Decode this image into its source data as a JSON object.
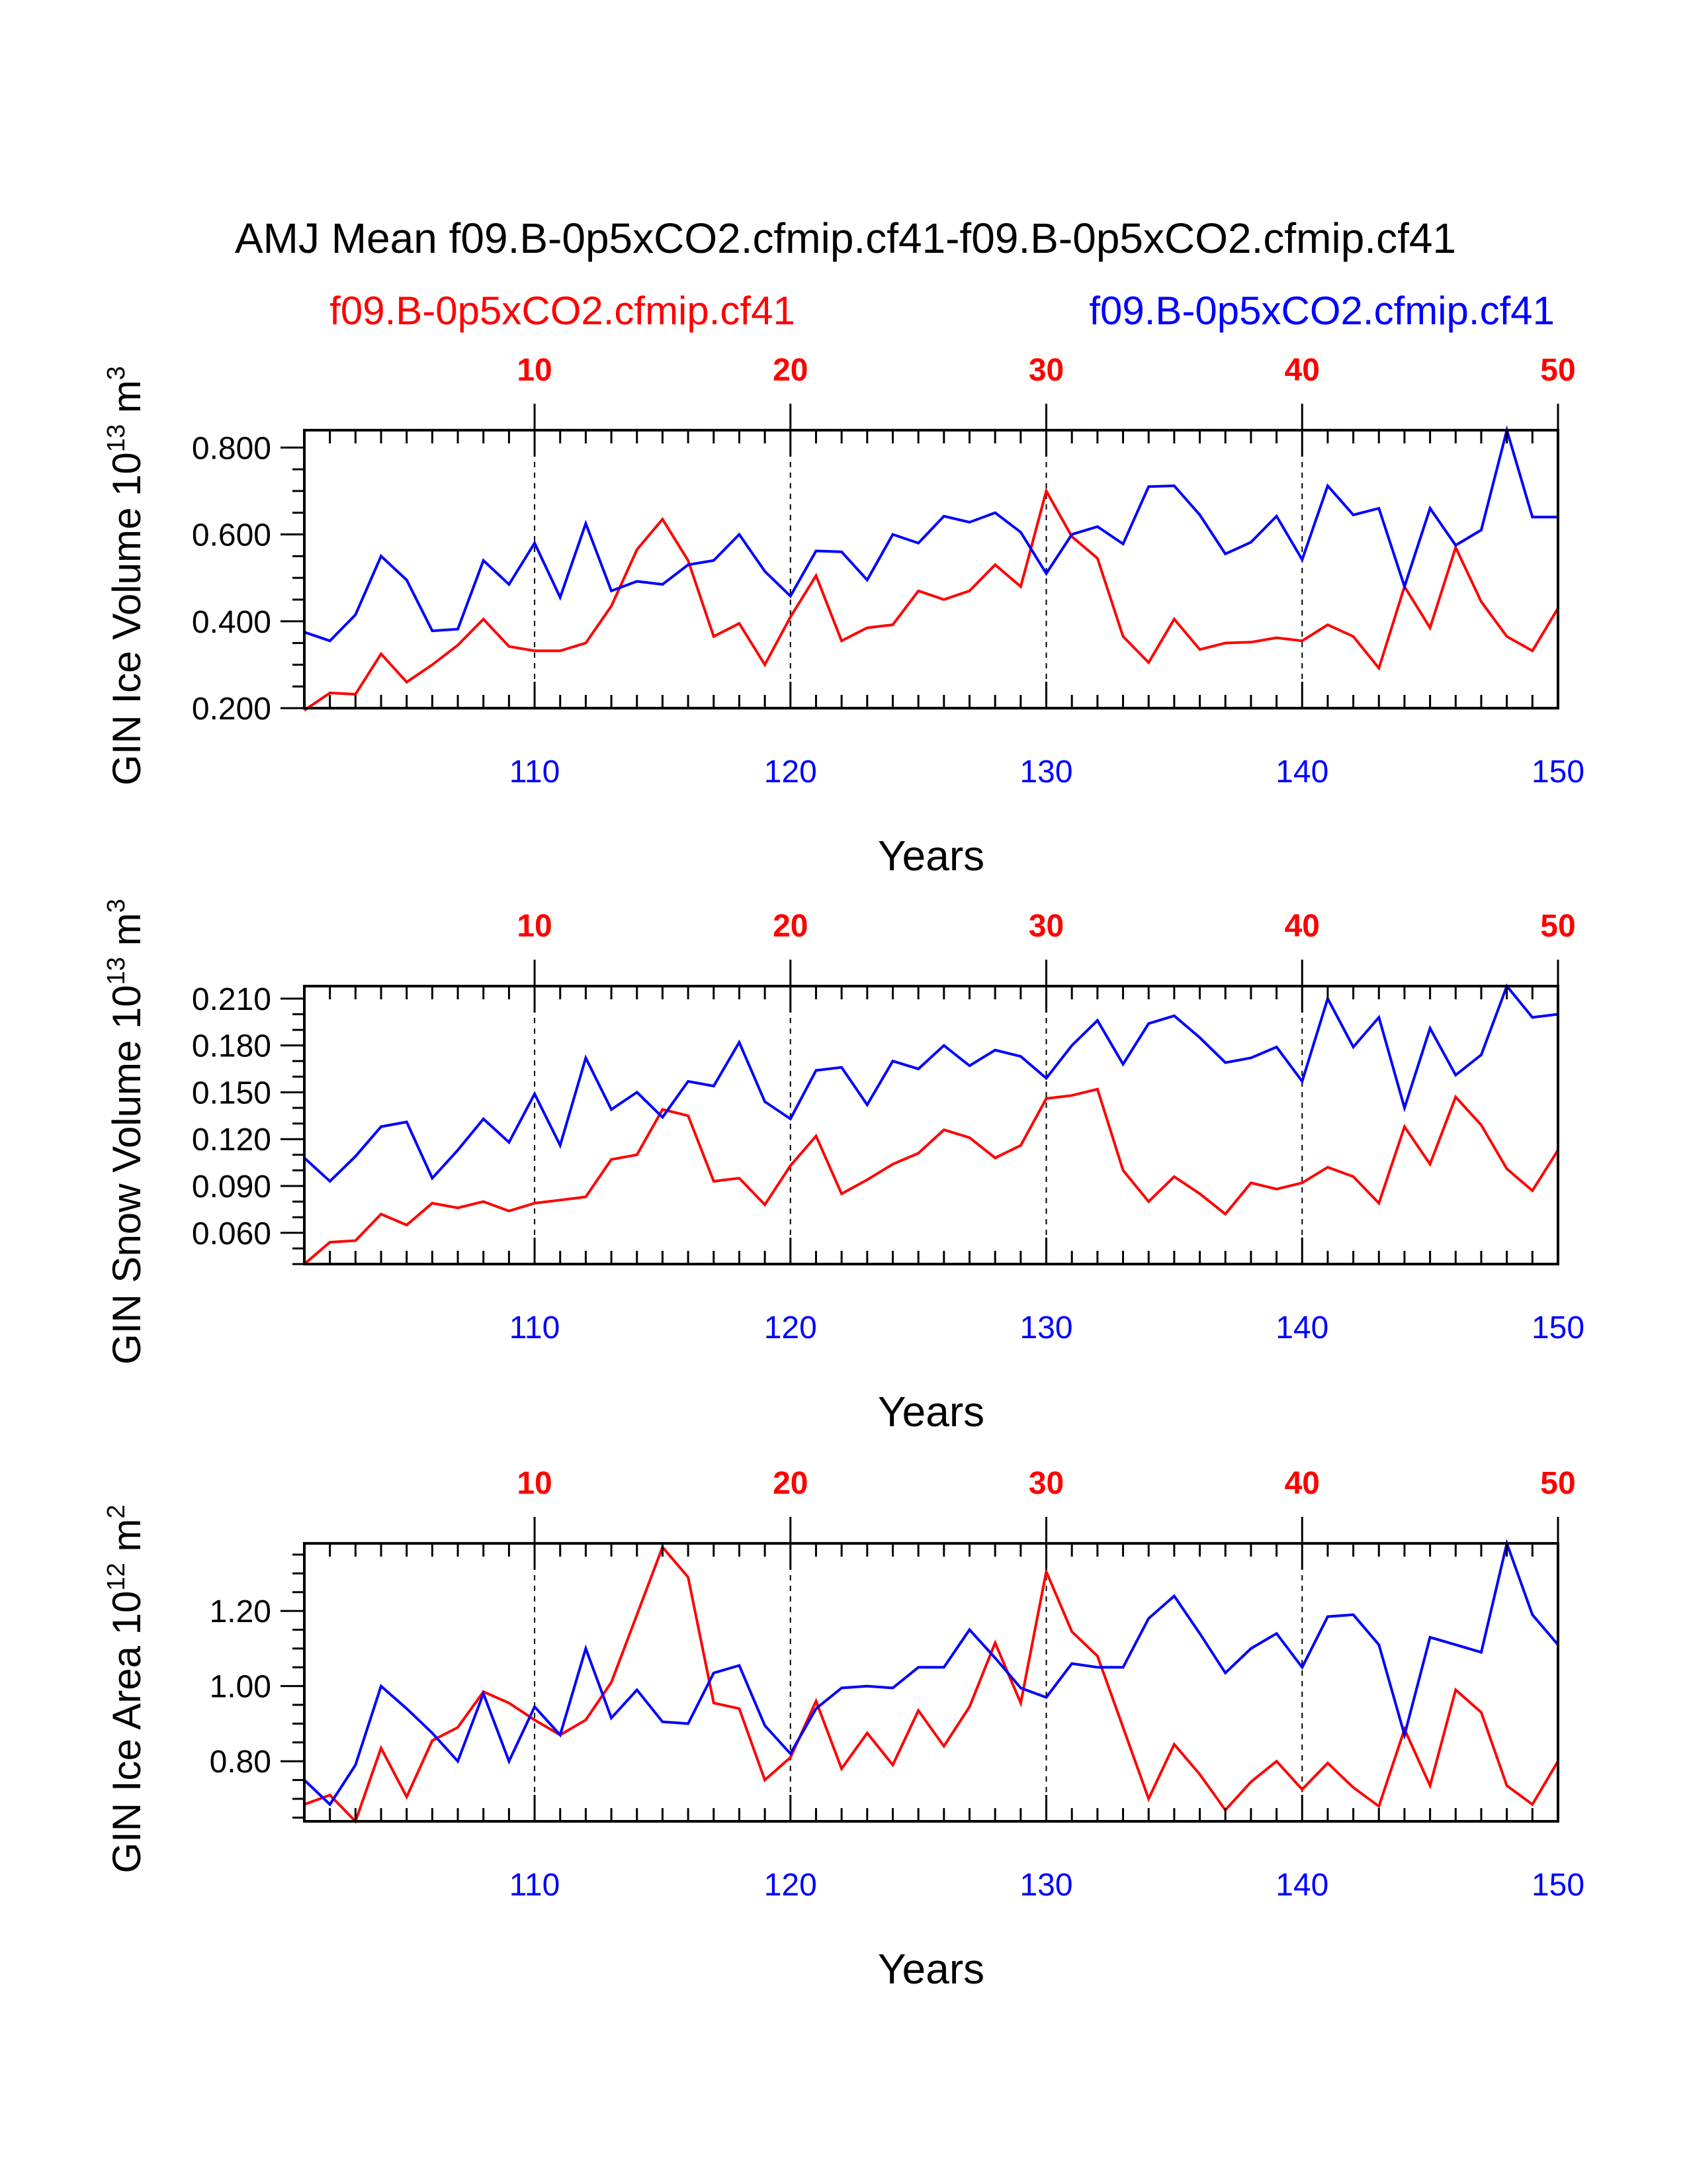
{
  "title": "AMJ Mean f09.B-0p5xCO2.cfmip.cf41-f09.B-0p5xCO2.cfmip.cf41",
  "legend": {
    "left": {
      "label": "f09.B-0p5xCO2.cfmip.cf41",
      "color": "#ff0000"
    },
    "right": {
      "label": "f09.B-0p5xCO2.cfmip.cf41",
      "color": "#0000ff"
    }
  },
  "colors": {
    "series_a": "#ff0000",
    "series_b": "#0000ff",
    "axis": "#000000"
  },
  "chart_data": [
    {
      "type": "line",
      "id": "ice-volume",
      "ylabel": "GIN Ice Volume 10",
      "ylabel_exp": "13",
      "ylabel_unit": " m",
      "ylabel_unit_exp": "3",
      "xlabel": "Years",
      "xlim": [
        101,
        150
      ],
      "ylim": [
        0.2,
        0.84
      ],
      "yticks": [
        0.2,
        0.4,
        0.6,
        0.8
      ],
      "ytick_labels": [
        "0.200",
        "0.400",
        "0.600",
        "0.800"
      ],
      "yminor": 0.05,
      "xticks_bottom": [
        110,
        120,
        130,
        140,
        150
      ],
      "xticks_bottom_labels": [
        "110",
        "120",
        "130",
        "140",
        "150"
      ],
      "xticks_top_labels": [
        "10",
        "20",
        "30",
        "40",
        "50"
      ],
      "x": [
        101,
        102,
        103,
        104,
        105,
        106,
        107,
        108,
        109,
        110,
        111,
        112,
        113,
        114,
        115,
        116,
        117,
        118,
        119,
        120,
        121,
        122,
        123,
        124,
        125,
        126,
        127,
        128,
        129,
        130,
        131,
        132,
        133,
        134,
        135,
        136,
        137,
        138,
        139,
        140,
        141,
        142,
        143,
        144,
        145,
        146,
        147,
        148,
        149,
        150
      ],
      "series": [
        {
          "name": "f09.B-0p5xCO2.cfmip.cf41",
          "color": "#ff0000",
          "values": [
            0.195,
            0.235,
            0.232,
            0.325,
            0.26,
            0.3,
            0.345,
            0.405,
            0.342,
            0.332,
            0.332,
            0.35,
            0.435,
            0.565,
            0.635,
            0.54,
            0.365,
            0.395,
            0.3,
            0.41,
            0.505,
            0.355,
            0.385,
            0.392,
            0.47,
            0.45,
            0.47,
            0.53,
            0.48,
            0.7,
            0.595,
            0.545,
            0.365,
            0.305,
            0.405,
            0.335,
            0.35,
            0.352,
            0.362,
            0.355,
            0.392,
            0.365,
            0.292,
            0.48,
            0.385,
            0.57,
            0.445,
            0.365,
            0.332,
            0.43
          ]
        },
        {
          "name": "f09.B-0p5xCO2.cfmip.cf41",
          "color": "#0000ff",
          "values": [
            0.375,
            0.355,
            0.415,
            0.55,
            0.495,
            0.378,
            0.382,
            0.54,
            0.485,
            0.58,
            0.455,
            0.625,
            0.47,
            0.492,
            0.485,
            0.53,
            0.54,
            0.6,
            0.515,
            0.458,
            0.562,
            0.56,
            0.495,
            0.6,
            0.58,
            0.642,
            0.628,
            0.65,
            0.605,
            0.51,
            0.6,
            0.618,
            0.578,
            0.71,
            0.712,
            0.645,
            0.555,
            0.582,
            0.642,
            0.542,
            0.712,
            0.645,
            0.66,
            0.48,
            0.66,
            0.575,
            0.61,
            0.84,
            0.64,
            0.64
          ]
        }
      ]
    },
    {
      "type": "line",
      "id": "snow-volume",
      "ylabel": "GIN Snow Volume 10",
      "ylabel_exp": "13",
      "ylabel_unit": " m",
      "ylabel_unit_exp": "3",
      "xlabel": "Years",
      "xlim": [
        101,
        150
      ],
      "ylim": [
        0.04,
        0.218
      ],
      "yticks": [
        0.06,
        0.09,
        0.12,
        0.15,
        0.18,
        0.21
      ],
      "ytick_labels": [
        "0.060",
        "0.090",
        "0.120",
        "0.150",
        "0.180",
        "0.210"
      ],
      "yminor": 0.01,
      "xticks_bottom": [
        110,
        120,
        130,
        140,
        150
      ],
      "xticks_bottom_labels": [
        "110",
        "120",
        "130",
        "140",
        "150"
      ],
      "xticks_top_labels": [
        "10",
        "20",
        "30",
        "40",
        "50"
      ],
      "x": [
        101,
        102,
        103,
        104,
        105,
        106,
        107,
        108,
        109,
        110,
        111,
        112,
        113,
        114,
        115,
        116,
        117,
        118,
        119,
        120,
        121,
        122,
        123,
        124,
        125,
        126,
        127,
        128,
        129,
        130,
        131,
        132,
        133,
        134,
        135,
        136,
        137,
        138,
        139,
        140,
        141,
        142,
        143,
        144,
        145,
        146,
        147,
        148,
        149,
        150
      ],
      "series": [
        {
          "name": "f09.B-0p5xCO2.cfmip.cf41",
          "color": "#ff0000",
          "values": [
            0.04,
            0.054,
            0.055,
            0.072,
            0.065,
            0.079,
            0.076,
            0.08,
            0.074,
            0.079,
            0.081,
            0.083,
            0.107,
            0.11,
            0.139,
            0.135,
            0.093,
            0.095,
            0.078,
            0.103,
            0.122,
            0.085,
            0.094,
            0.104,
            0.111,
            0.126,
            0.121,
            0.108,
            0.116,
            0.146,
            0.148,
            0.152,
            0.1,
            0.08,
            0.096,
            0.085,
            0.072,
            0.092,
            0.088,
            0.092,
            0.102,
            0.096,
            0.079,
            0.128,
            0.104,
            0.147,
            0.129,
            0.101,
            0.087,
            0.113
          ]
        },
        {
          "name": "f09.B-0p5xCO2.cfmip.cf41",
          "color": "#0000ff",
          "values": [
            0.108,
            0.093,
            0.109,
            0.128,
            0.131,
            0.095,
            0.113,
            0.133,
            0.118,
            0.149,
            0.116,
            0.172,
            0.139,
            0.15,
            0.134,
            0.157,
            0.154,
            0.182,
            0.144,
            0.133,
            0.164,
            0.166,
            0.142,
            0.17,
            0.165,
            0.18,
            0.167,
            0.177,
            0.173,
            0.159,
            0.18,
            0.196,
            0.168,
            0.194,
            0.199,
            0.185,
            0.169,
            0.172,
            0.179,
            0.157,
            0.21,
            0.179,
            0.198,
            0.14,
            0.191,
            0.161,
            0.174,
            0.218,
            0.198,
            0.2
          ]
        }
      ]
    },
    {
      "type": "line",
      "id": "ice-area",
      "ylabel": "GIN Ice Area 10",
      "ylabel_exp": "12",
      "ylabel_unit": " m",
      "ylabel_unit_exp": "2",
      "xlabel": "Years",
      "xlim": [
        101,
        150
      ],
      "ylim": [
        0.64,
        1.38
      ],
      "yticks": [
        0.8,
        1.0,
        1.2
      ],
      "ytick_labels": [
        "0.80",
        "1.00",
        "1.20"
      ],
      "yminor": 0.05,
      "xticks_bottom": [
        110,
        120,
        130,
        140,
        150
      ],
      "xticks_bottom_labels": [
        "110",
        "120",
        "130",
        "140",
        "150"
      ],
      "xticks_top_labels": [
        "10",
        "20",
        "30",
        "40",
        "50"
      ],
      "x": [
        101,
        102,
        103,
        104,
        105,
        106,
        107,
        108,
        109,
        110,
        111,
        112,
        113,
        114,
        115,
        116,
        117,
        118,
        119,
        120,
        121,
        122,
        123,
        124,
        125,
        126,
        127,
        128,
        129,
        130,
        131,
        132,
        133,
        134,
        135,
        136,
        137,
        138,
        139,
        140,
        141,
        142,
        143,
        144,
        145,
        146,
        147,
        148,
        149,
        150
      ],
      "series": [
        {
          "name": "f09.B-0p5xCO2.cfmip.cf41",
          "color": "#ff0000",
          "values": [
            0.685,
            0.71,
            0.64,
            0.835,
            0.705,
            0.855,
            0.89,
            0.985,
            0.955,
            0.91,
            0.87,
            0.91,
            1.01,
            1.19,
            1.37,
            1.29,
            0.955,
            0.94,
            0.75,
            0.81,
            0.96,
            0.78,
            0.875,
            0.79,
            0.935,
            0.84,
            0.945,
            1.115,
            0.955,
            1.305,
            1.145,
            1.08,
            0.89,
            0.7,
            0.845,
            0.765,
            0.67,
            0.745,
            0.8,
            0.725,
            0.795,
            0.73,
            0.68,
            0.885,
            0.735,
            0.99,
            0.93,
            0.735,
            0.685,
            0.8
          ]
        },
        {
          "name": "f09.B-0p5xCO2.cfmip.cf41",
          "color": "#0000ff",
          "values": [
            0.75,
            0.685,
            0.79,
            1.0,
            0.94,
            0.875,
            0.8,
            0.98,
            0.8,
            0.945,
            0.87,
            1.1,
            0.915,
            0.99,
            0.905,
            0.9,
            1.035,
            1.055,
            0.895,
            0.82,
            0.94,
            0.995,
            1.0,
            0.995,
            1.05,
            1.05,
            1.15,
            1.075,
            0.995,
            0.97,
            1.06,
            1.05,
            1.05,
            1.18,
            1.24,
            1.14,
            1.035,
            1.1,
            1.14,
            1.05,
            1.185,
            1.19,
            1.11,
            0.87,
            1.13,
            1.11,
            1.09,
            1.38,
            1.19,
            1.11
          ]
        }
      ]
    }
  ]
}
